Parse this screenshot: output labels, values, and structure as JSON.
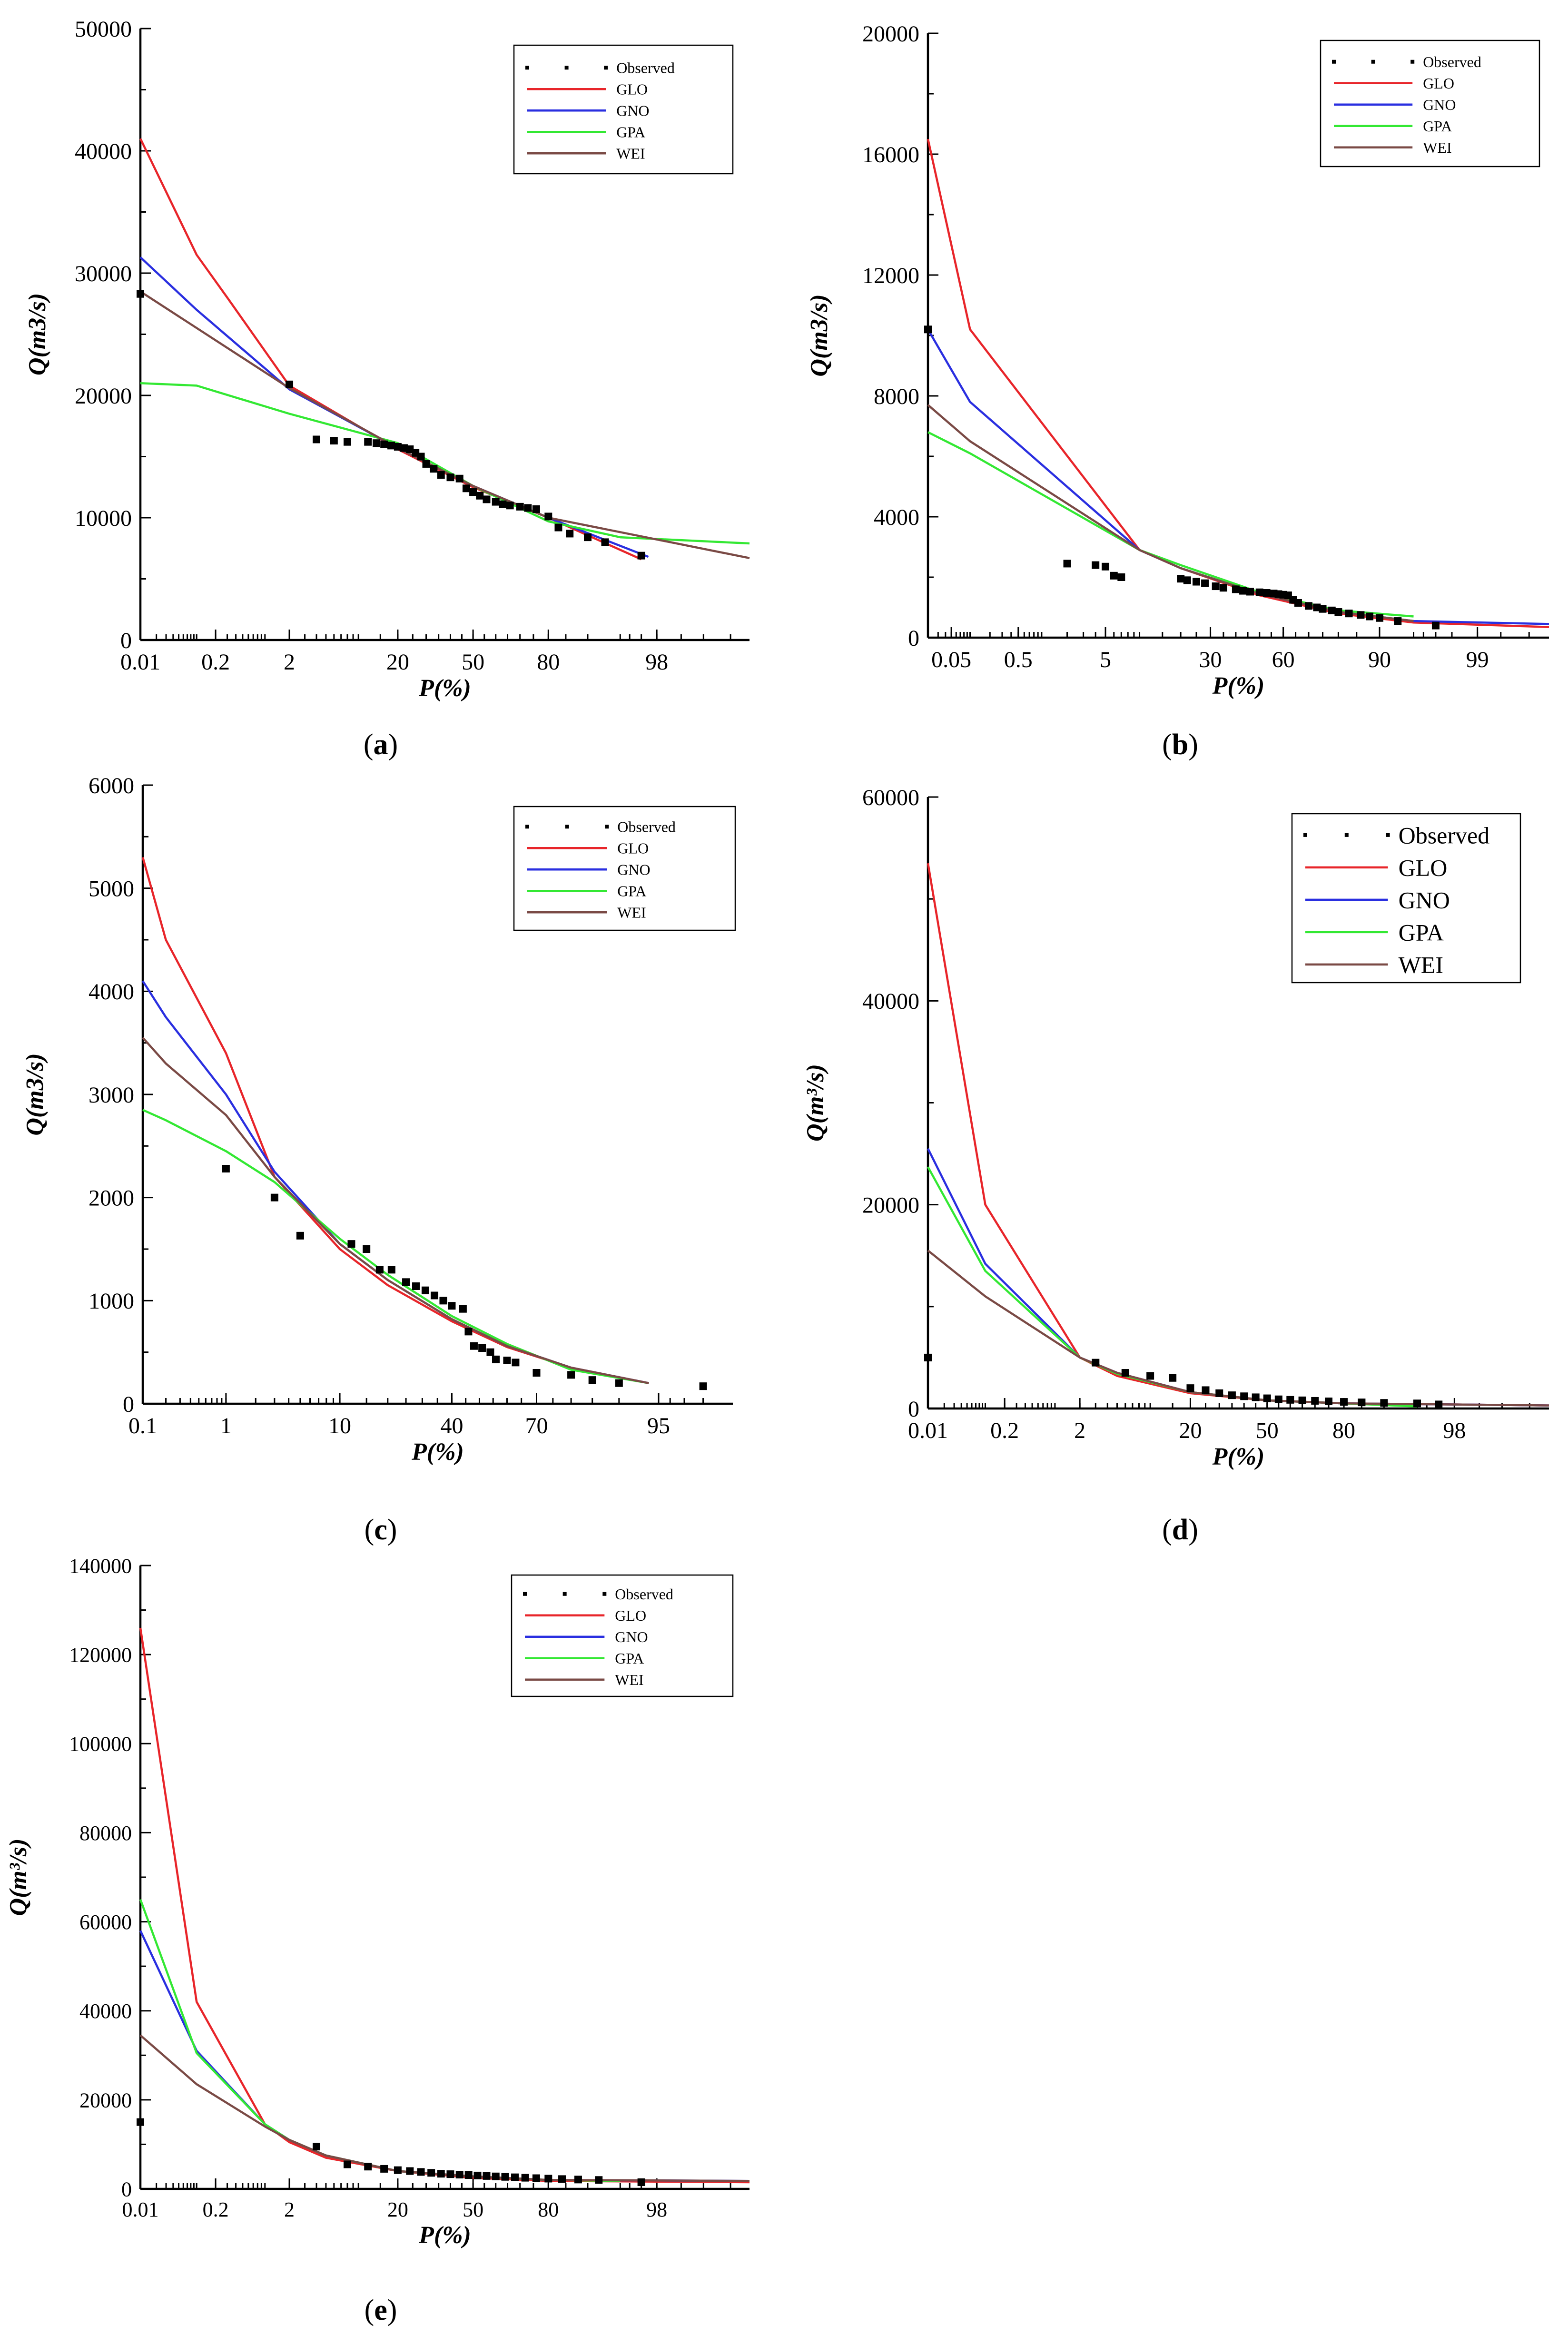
{
  "colors": {
    "GLO": "#e8252a",
    "GNO": "#2a2fe0",
    "GPA": "#33e833",
    "WEI": "#7a4a45",
    "Observed": "#000000"
  },
  "captions": [
    "a",
    "b",
    "c",
    "d",
    "e"
  ],
  "chart_data": [
    {
      "id": "a",
      "type": "line",
      "ylabel_base": "Q",
      "ylabel_unit": "(m3/s)",
      "xlabel": "P(%)",
      "ylim": [
        0,
        50000
      ],
      "yticks": [
        0,
        10000,
        20000,
        30000,
        40000,
        50000
      ],
      "xticks": [
        0.01,
        0.2,
        2,
        20,
        50,
        80,
        98
      ],
      "xtick_labels": [
        "0.01",
        "0.2",
        "2",
        "20",
        "50",
        "80",
        "98"
      ],
      "legend": [
        "Observed",
        "GLO",
        "GNO",
        "GPA",
        "WEI"
      ],
      "series": [
        {
          "name": "GLO",
          "x": [
            0.01,
            0.1,
            0.3,
            2,
            20,
            50,
            80,
            97
          ],
          "y": [
            41000,
            31500,
            28000,
            20800,
            15600,
            12500,
            10000,
            6600
          ]
        },
        {
          "name": "GNO",
          "x": [
            0.01,
            0.1,
            2,
            20,
            50,
            80,
            97.5
          ],
          "y": [
            31300,
            27000,
            20500,
            15700,
            12600,
            10000,
            6800
          ]
        },
        {
          "name": "GPA",
          "x": [
            0.01,
            0.1,
            2,
            20,
            50,
            80,
            95,
            99.9
          ],
          "y": [
            21000,
            20800,
            18500,
            16100,
            12600,
            9700,
            8400,
            7900
          ]
        },
        {
          "name": "WEI",
          "x": [
            0.01,
            2,
            20,
            50,
            80,
            99.9
          ],
          "y": [
            28500,
            20600,
            15700,
            12600,
            10000,
            6700
          ]
        }
      ],
      "observed": {
        "x": [
          0.01,
          2,
          4,
          6,
          8,
          12,
          14,
          16,
          18,
          20,
          22,
          24,
          26,
          28,
          30,
          33,
          36,
          40,
          44,
          47,
          50,
          53,
          56,
          60,
          63,
          66,
          70,
          73,
          76,
          80,
          83,
          86,
          90,
          93,
          97
        ],
        "y": [
          28300,
          20900,
          16400,
          16300,
          16200,
          16200,
          16100,
          16000,
          15900,
          15800,
          15700,
          15600,
          15300,
          15000,
          14400,
          14000,
          13500,
          13300,
          13200,
          12400,
          12100,
          11800,
          11500,
          11300,
          11100,
          11000,
          10900,
          10800,
          10700,
          10100,
          9200,
          8700,
          8400,
          8000,
          6900
        ]
      }
    },
    {
      "id": "b",
      "type": "line",
      "ylabel_base": "Q",
      "ylabel_unit": "(m3/s)",
      "xlabel": "P(%)",
      "ylim": [
        0,
        20000
      ],
      "yticks": [
        0,
        4000,
        8000,
        12000,
        16000,
        20000
      ],
      "xticks": [
        0.05,
        0.5,
        5,
        30,
        60,
        90,
        99
      ],
      "xtick_labels": [
        "0.05",
        "0.5",
        "5",
        "30",
        "60",
        "90",
        "99"
      ],
      "legend": [
        "Observed",
        "GLO",
        "GNO",
        "GPA",
        "WEI"
      ],
      "series": [
        {
          "name": "GLO",
          "x": [
            0.02,
            0.1,
            10,
            20,
            50,
            80,
            95,
            99.9
          ],
          "y": [
            16500,
            10200,
            2900,
            2300,
            1400,
            800,
            500,
            350
          ]
        },
        {
          "name": "GNO",
          "x": [
            0.02,
            0.1,
            10,
            20,
            50,
            80,
            95,
            99.9
          ],
          "y": [
            10200,
            7800,
            2900,
            2300,
            1450,
            850,
            550,
            450
          ]
        },
        {
          "name": "GPA",
          "x": [
            0.02,
            0.1,
            10,
            20,
            50,
            80,
            95
          ],
          "y": [
            6800,
            6100,
            2900,
            2400,
            1500,
            900,
            700
          ]
        },
        {
          "name": "WEI",
          "x": [
            0.02,
            0.1,
            10,
            20,
            50,
            80,
            95
          ],
          "y": [
            7700,
            6500,
            2900,
            2300,
            1450,
            850,
            550
          ]
        }
      ],
      "observed": {
        "x": [
          0.02,
          2,
          4,
          5,
          6,
          7,
          20,
          22,
          25,
          28,
          32,
          35,
          40,
          43,
          46,
          50,
          53,
          56,
          58,
          60,
          62,
          64,
          66,
          70,
          73,
          75,
          78,
          80,
          83,
          86,
          88,
          90,
          93,
          97
        ],
        "y": [
          10200,
          2450,
          2400,
          2350,
          2050,
          2000,
          1950,
          1900,
          1850,
          1800,
          1700,
          1650,
          1600,
          1550,
          1520,
          1500,
          1480,
          1460,
          1440,
          1420,
          1400,
          1250,
          1150,
          1050,
          1000,
          950,
          900,
          850,
          800,
          750,
          700,
          650,
          550,
          400
        ]
      }
    },
    {
      "id": "c",
      "type": "line",
      "ylabel_base": "Q",
      "ylabel_unit": "(m3/s)",
      "xlabel": "P(%)",
      "ylim": [
        0,
        6000
      ],
      "yticks": [
        0,
        1000,
        2000,
        3000,
        4000,
        5000,
        6000
      ],
      "xticks": [
        0.1,
        1,
        10,
        40,
        70,
        95
      ],
      "xtick_labels": [
        "0.1",
        "1",
        "10",
        "40",
        "70",
        "95"
      ],
      "legend": [
        "Observed",
        "GLO",
        "GNO",
        "GPA",
        "WEI"
      ],
      "series": [
        {
          "name": "GLO",
          "x": [
            0.1,
            0.2,
            1,
            3,
            10,
            20,
            40,
            60,
            80,
            94
          ],
          "y": [
            5300,
            4500,
            3400,
            2200,
            1500,
            1150,
            800,
            550,
            350,
            200
          ]
        },
        {
          "name": "GNO",
          "x": [
            0.1,
            0.2,
            1,
            3,
            10,
            20,
            40,
            60,
            80,
            94
          ],
          "y": [
            4100,
            3750,
            3000,
            2250,
            1550,
            1200,
            820,
            560,
            350,
            200
          ]
        },
        {
          "name": "GPA",
          "x": [
            0.1,
            0.2,
            1,
            3,
            10,
            20,
            40,
            60,
            80,
            94
          ],
          "y": [
            2850,
            2750,
            2450,
            2150,
            1600,
            1250,
            850,
            580,
            330,
            200
          ]
        },
        {
          "name": "WEI",
          "x": [
            0.1,
            0.2,
            1,
            3,
            10,
            20,
            40,
            60,
            80,
            94
          ],
          "y": [
            3550,
            3300,
            2800,
            2200,
            1550,
            1200,
            820,
            560,
            350,
            200
          ]
        }
      ],
      "observed": {
        "x": [
          1,
          3,
          5,
          12,
          15,
          18,
          21,
          25,
          28,
          31,
          34,
          37,
          40,
          44,
          46,
          48,
          51,
          54,
          56,
          60,
          63,
          70,
          80,
          85,
          90,
          98
        ],
        "y": [
          2280,
          2000,
          1630,
          1550,
          1500,
          1300,
          1300,
          1180,
          1140,
          1100,
          1050,
          1000,
          950,
          920,
          700,
          560,
          540,
          500,
          430,
          420,
          400,
          300,
          280,
          230,
          200,
          170
        ]
      }
    },
    {
      "id": "d",
      "type": "line",
      "ylabel_base": "Q",
      "ylabel_unit": "(m³/s)",
      "xlabel": "P(%)",
      "ylim": [
        0,
        60000
      ],
      "yticks": [
        0,
        20000,
        40000,
        60000
      ],
      "xticks": [
        0.01,
        0.2,
        2,
        20,
        50,
        80,
        98
      ],
      "xtick_labels": [
        "0.01",
        "0.2",
        "2",
        "20",
        "50",
        "80",
        "98"
      ],
      "legend": [
        "Observed",
        "GLO",
        "GNO",
        "GPA",
        "WEI"
      ],
      "series": [
        {
          "name": "GLO",
          "x": [
            0.01,
            0.1,
            2,
            5,
            20,
            50,
            80,
            99.9
          ],
          "y": [
            53500,
            20000,
            5000,
            3200,
            1500,
            800,
            500,
            300
          ]
        },
        {
          "name": "GNO",
          "x": [
            0.01,
            0.1,
            2,
            5,
            20,
            50,
            80,
            99.9
          ],
          "y": [
            25500,
            14200,
            5000,
            3500,
            1600,
            800,
            500,
            300
          ]
        },
        {
          "name": "GPA",
          "x": [
            0.01,
            0.1,
            2,
            5,
            20,
            50,
            80,
            95
          ],
          "y": [
            23700,
            13500,
            5000,
            3400,
            1600,
            800,
            500,
            200
          ]
        },
        {
          "name": "WEI",
          "x": [
            0.01,
            0.1,
            2,
            5,
            20,
            50,
            80,
            99.9
          ],
          "y": [
            15500,
            11000,
            5000,
            3500,
            1600,
            800,
            500,
            300
          ]
        }
      ],
      "observed": {
        "x": [
          0.01,
          3,
          6,
          10,
          15,
          20,
          25,
          30,
          35,
          40,
          45,
          50,
          55,
          60,
          65,
          70,
          75,
          80,
          85,
          90,
          95,
          97
        ],
        "y": [
          5000,
          4500,
          3500,
          3200,
          3000,
          2000,
          1800,
          1500,
          1300,
          1200,
          1100,
          1000,
          900,
          850,
          800,
          750,
          700,
          650,
          600,
          550,
          500,
          400
        ]
      }
    },
    {
      "id": "e",
      "type": "line",
      "ylabel_base": "Q",
      "ylabel_unit": "(m³/s)",
      "xlabel": "P(%)",
      "ylim": [
        0,
        140000
      ],
      "yticks": [
        0,
        20000,
        40000,
        60000,
        80000,
        100000,
        120000,
        140000
      ],
      "xticks": [
        0.01,
        0.2,
        2,
        20,
        50,
        80,
        98
      ],
      "xtick_labels": [
        "0.01",
        "0.2",
        "2",
        "20",
        "50",
        "80",
        "98"
      ],
      "legend": [
        "Observed",
        "GLO",
        "GNO",
        "GPA",
        "WEI"
      ],
      "series": [
        {
          "name": "GLO",
          "x": [
            0.01,
            0.1,
            1,
            2,
            5,
            20,
            50,
            80,
            99.9
          ],
          "y": [
            126000,
            42000,
            14500,
            10500,
            7000,
            4000,
            2500,
            1800,
            1500
          ]
        },
        {
          "name": "GNO",
          "x": [
            0.01,
            0.1,
            1,
            2,
            5,
            20,
            50,
            80,
            99.9
          ],
          "y": [
            58000,
            31000,
            14500,
            11000,
            7500,
            4000,
            2800,
            2000,
            1800
          ]
        },
        {
          "name": "GPA",
          "x": [
            0.01,
            0.1,
            1,
            2,
            5,
            20,
            50,
            80,
            95
          ],
          "y": [
            65000,
            30500,
            14500,
            11000,
            7500,
            4000,
            2800,
            2000,
            1800
          ]
        },
        {
          "name": "WEI",
          "x": [
            0.01,
            0.1,
            1,
            2,
            5,
            20,
            50,
            80,
            99.9
          ],
          "y": [
            34500,
            23500,
            14000,
            11000,
            7500,
            4000,
            2800,
            2000,
            1800
          ]
        }
      ],
      "observed": {
        "x": [
          0.01,
          4,
          8,
          12,
          16,
          20,
          24,
          28,
          32,
          36,
          40,
          44,
          48,
          52,
          56,
          60,
          64,
          68,
          72,
          76,
          80,
          84,
          88,
          92,
          97
        ],
        "y": [
          15000,
          9500,
          5500,
          5000,
          4500,
          4200,
          4000,
          3800,
          3600,
          3400,
          3300,
          3200,
          3100,
          3000,
          2900,
          2800,
          2700,
          2600,
          2500,
          2400,
          2300,
          2200,
          2100,
          2000,
          1500
        ]
      }
    }
  ]
}
